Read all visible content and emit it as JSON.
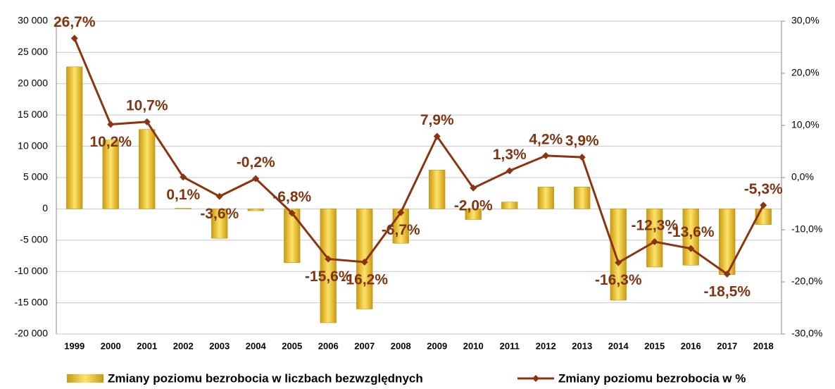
{
  "chart_data": {
    "type": "bar-line",
    "categories": [
      "1999",
      "2000",
      "2001",
      "2002",
      "2003",
      "2004",
      "2005",
      "2006",
      "2007",
      "2008",
      "2009",
      "2010",
      "2011",
      "2012",
      "2013",
      "2014",
      "2015",
      "2016",
      "2017",
      "2018"
    ],
    "series": [
      {
        "name": "Zmiany poziomu bezrobocia w liczbach bezwzględnych",
        "type": "bar",
        "color": "#e8b923",
        "values": [
          22700,
          11000,
          12700,
          100,
          -4700,
          -300,
          -8600,
          -18200,
          -16000,
          -5500,
          6200,
          -1700,
          1100,
          3500,
          3500,
          -14600,
          -9300,
          -9000,
          -10500,
          -2500
        ]
      },
      {
        "name": "Zmiany poziomu bezrobocia w %",
        "type": "line",
        "axis": "y2",
        "color": "#8a3510",
        "values": [
          26.7,
          10.2,
          10.7,
          0.1,
          -3.6,
          -0.2,
          -6.8,
          -15.6,
          -16.2,
          -6.7,
          7.9,
          -2.0,
          1.3,
          4.2,
          3.9,
          -16.3,
          -12.3,
          -13.6,
          -18.5,
          -5.3
        ],
        "value_labels": [
          "26,7%",
          "10,2%",
          "10,7%",
          "0,1%",
          "-3,6%",
          "-0,2%",
          "-6,8%",
          "-15,6%",
          "-16,2%",
          "-6,7%",
          "7,9%",
          "-2,0%",
          "1,3%",
          "4,2%",
          "3,9%",
          "-16,3%",
          "-12,3%",
          "-13,6%",
          "-18,5%",
          "-5,3%"
        ]
      }
    ],
    "ylim": [
      -20000,
      30000
    ],
    "yticks": [
      {
        "value": -20000,
        "label": "-20 000"
      },
      {
        "value": -15000,
        "label": "-15 000"
      },
      {
        "value": -10000,
        "label": "-10 000"
      },
      {
        "value": -5000,
        "label": "-5 000"
      },
      0,
      {
        "value": 5000,
        "label": "5 000"
      },
      {
        "value": 10000,
        "label": "10 000"
      },
      {
        "value": 15000,
        "label": "15 000"
      },
      {
        "value": 20000,
        "label": "20 000"
      },
      {
        "value": 25000,
        "label": "25 000"
      },
      {
        "value": 30000,
        "label": "30 000"
      }
    ],
    "y2lim": [
      -30,
      30
    ],
    "y2ticks": [
      {
        "value": -30,
        "label": "-30,0%"
      },
      {
        "value": -20,
        "label": "-20,0%"
      },
      {
        "value": -10,
        "label": "-10,0%"
      },
      {
        "value": 0,
        "label": "0,0%"
      },
      {
        "value": 10,
        "label": "10,0%"
      },
      {
        "value": 20,
        "label": "20,0%"
      },
      {
        "value": 30,
        "label": "30,0%"
      }
    ],
    "grid": true,
    "legend": "bottom"
  }
}
